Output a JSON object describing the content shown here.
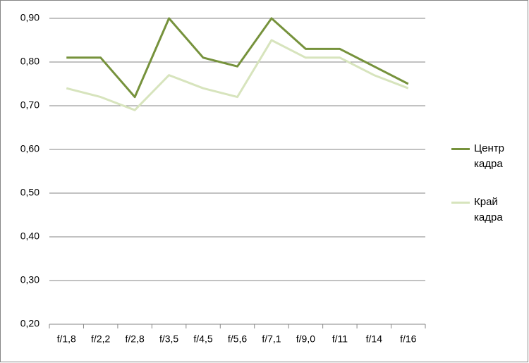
{
  "chart_data": {
    "type": "line",
    "categories": [
      "f/1,8",
      "f/2,2",
      "f/2,8",
      "f/3,5",
      "f/4,5",
      "f/5,6",
      "f/7,1",
      "f/9,0",
      "f/11",
      "f/14",
      "f/16"
    ],
    "series": [
      {
        "name": "Центр кадра",
        "color": "#76923c",
        "values": [
          0.81,
          0.81,
          0.72,
          0.9,
          0.81,
          0.79,
          0.9,
          0.83,
          0.83,
          0.79,
          0.75
        ]
      },
      {
        "name": "Край кадра",
        "color": "#d7e4bd",
        "values": [
          0.74,
          0.72,
          0.69,
          0.77,
          0.74,
          0.72,
          0.85,
          0.81,
          0.81,
          0.77,
          0.74
        ]
      }
    ],
    "ylim": [
      0.2,
      0.9
    ],
    "yticks": [
      {
        "value": 0.2,
        "label": "0,20"
      },
      {
        "value": 0.3,
        "label": "0,30"
      },
      {
        "value": 0.4,
        "label": "0,40"
      },
      {
        "value": 0.5,
        "label": "0,50"
      },
      {
        "value": 0.6,
        "label": "0,60"
      },
      {
        "value": 0.7,
        "label": "0,70"
      },
      {
        "value": 0.8,
        "label": "0,80"
      },
      {
        "value": 0.9,
        "label": "0,90"
      }
    ],
    "grid": true,
    "legend": "right"
  }
}
